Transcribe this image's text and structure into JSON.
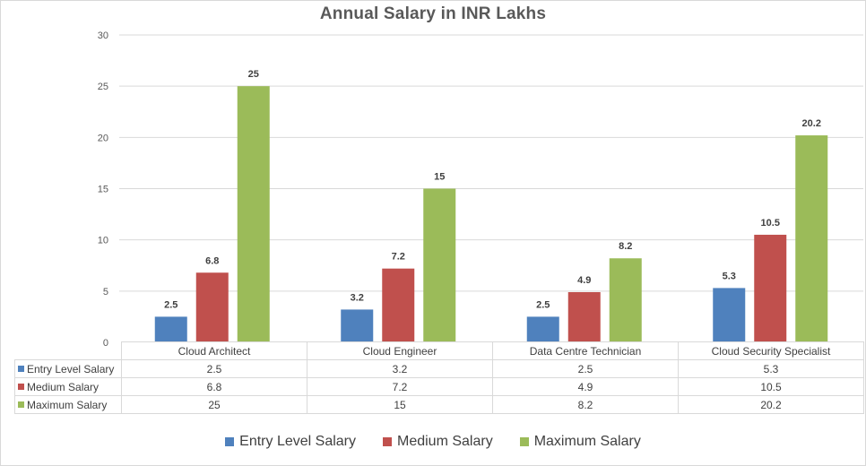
{
  "chart_data": {
    "type": "bar",
    "title": "Annual Salary in INR Lakhs",
    "xlabel": "",
    "ylabel": "",
    "ylim": [
      0,
      30
    ],
    "yticks": [
      "0",
      "5",
      "10",
      "15",
      "20",
      "25",
      "30"
    ],
    "ytick_values": [
      0,
      5,
      10,
      15,
      20,
      25,
      30
    ],
    "grid": true,
    "legend_position": "bottom",
    "categories": [
      "Cloud Architect",
      "Cloud Engineer",
      "Data Centre Technician",
      "Cloud Security Specialist"
    ],
    "series": [
      {
        "name": "Entry Level Salary",
        "color": "#4f81bd",
        "values": [
          2.5,
          3.2,
          2.5,
          5.3
        ],
        "labels": [
          "2.5",
          "3.2",
          "2.5",
          "5.3"
        ]
      },
      {
        "name": "Medium Salary",
        "color": "#c0504d",
        "values": [
          6.8,
          7.2,
          4.9,
          10.5
        ],
        "labels": [
          "6.8",
          "7.2",
          "4.9",
          "10.5"
        ]
      },
      {
        "name": "Maximum Salary",
        "color": "#9bbb59",
        "values": [
          25,
          15,
          8.2,
          20.2
        ],
        "labels": [
          "25",
          "15",
          "8.2",
          "20.2"
        ]
      }
    ]
  }
}
